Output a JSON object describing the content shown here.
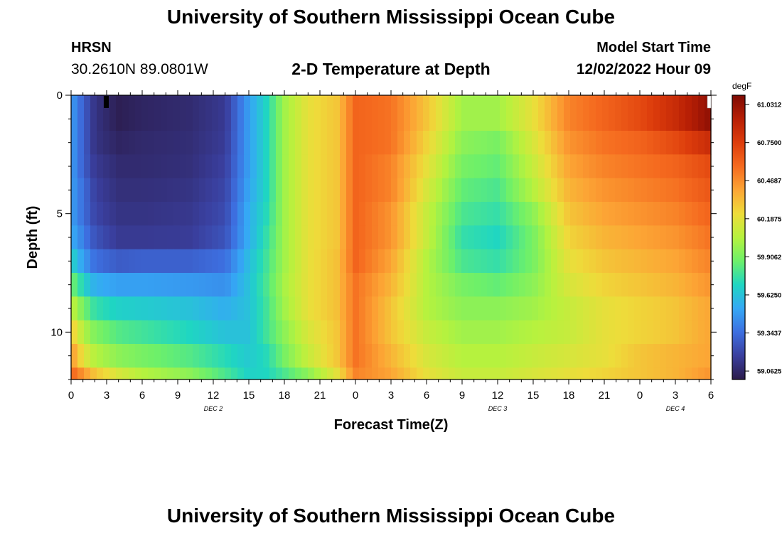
{
  "page": {
    "title": "University of Southern Mississippi Ocean Cube",
    "station_name": "HRSN",
    "station_coords": "30.2610N  89.0801W",
    "plot_title": "2-D Temperature at Depth",
    "model_start_label": "Model Start Time",
    "model_start_value": "12/02/2022 Hour 09",
    "footer_title": "University of Southern Mississippi Ocean Cube"
  },
  "chart_data": {
    "type": "heatmap",
    "title": "2-D Temperature at Depth",
    "xlabel": "Forecast Time(Z)",
    "ylabel": "Depth (ft)",
    "x_range_hours": [
      0,
      54
    ],
    "y_range_ft": [
      0,
      12
    ],
    "x_tick_labels": [
      "0",
      "3",
      "6",
      "9",
      "12",
      "15",
      "18",
      "21",
      "0",
      "3",
      "6",
      "9",
      "12",
      "15",
      "18",
      "21",
      "0",
      "3",
      "6"
    ],
    "y_tick_labels": [
      "0",
      "5",
      "10"
    ],
    "date_labels": [
      {
        "text": "DEC 2",
        "hour": 12
      },
      {
        "text": "DEC 3",
        "hour": 36
      },
      {
        "text": "DEC 4",
        "hour": 51
      }
    ],
    "colorbar": {
      "unit": "degF",
      "tick_labels": [
        "61.0312",
        "60.7500",
        "60.4687",
        "60.1875",
        "59.9062",
        "59.6250",
        "59.3437",
        "59.0625"
      ],
      "min": 59.0,
      "max": 61.1,
      "colors": [
        "#2b1b4a",
        "#3a3f9e",
        "#3d6fe0",
        "#35a8f5",
        "#1fd6c2",
        "#6df06a",
        "#b6f23e",
        "#eedc3a",
        "#fca535",
        "#f56a1f",
        "#dd3d0c",
        "#b71f05",
        "#7e0a04"
      ]
    },
    "depth_rows_ft": [
      0,
      1,
      2,
      3,
      4,
      5,
      6,
      7,
      8,
      9,
      10,
      11,
      12
    ],
    "time_keys_hours": [
      0,
      1,
      2,
      4,
      6,
      10,
      13,
      15,
      16.5,
      18,
      20,
      22.5,
      24,
      27,
      30,
      33,
      36,
      39,
      42,
      45,
      48,
      51,
      54
    ],
    "grid_degF": [
      [
        59.5,
        59.3,
        59.12,
        59.02,
        59.05,
        59.08,
        59.15,
        59.5,
        59.7,
        60.0,
        60.2,
        60.3,
        60.6,
        60.55,
        60.3,
        60.0,
        60.0,
        60.2,
        60.5,
        60.6,
        60.7,
        60.85,
        61.05
      ],
      [
        59.5,
        59.3,
        59.12,
        59.02,
        59.05,
        59.08,
        59.15,
        59.5,
        59.7,
        60.0,
        60.2,
        60.3,
        60.6,
        60.55,
        60.3,
        60.0,
        60.0,
        60.2,
        60.5,
        60.6,
        60.7,
        60.85,
        61.05
      ],
      [
        59.5,
        59.3,
        59.12,
        59.05,
        59.07,
        59.09,
        59.16,
        59.5,
        59.7,
        60.0,
        60.2,
        60.3,
        60.6,
        60.55,
        60.25,
        59.95,
        59.9,
        60.15,
        60.45,
        60.55,
        60.6,
        60.7,
        60.85
      ],
      [
        59.5,
        59.3,
        59.15,
        59.08,
        59.08,
        59.1,
        59.18,
        59.5,
        59.7,
        60.0,
        60.2,
        60.3,
        60.6,
        60.5,
        60.2,
        59.9,
        59.85,
        60.1,
        60.4,
        60.5,
        60.55,
        60.6,
        60.7
      ],
      [
        59.5,
        59.35,
        59.18,
        59.1,
        59.1,
        59.12,
        59.2,
        59.52,
        59.7,
        60.0,
        60.2,
        60.3,
        60.6,
        60.5,
        60.15,
        59.85,
        59.8,
        60.05,
        60.35,
        60.45,
        60.5,
        60.55,
        60.65
      ],
      [
        59.5,
        59.35,
        59.2,
        59.12,
        59.12,
        59.14,
        59.22,
        59.55,
        59.72,
        60.0,
        60.2,
        60.3,
        60.6,
        60.45,
        60.1,
        59.8,
        59.75,
        59.95,
        60.3,
        60.4,
        60.45,
        60.5,
        60.6
      ],
      [
        59.55,
        59.4,
        59.25,
        59.15,
        59.15,
        59.16,
        59.25,
        59.55,
        59.75,
        60.0,
        60.2,
        60.3,
        60.6,
        60.45,
        60.1,
        59.75,
        59.7,
        59.9,
        60.25,
        60.35,
        60.4,
        60.45,
        60.55
      ],
      [
        59.7,
        59.5,
        59.35,
        59.28,
        59.3,
        59.3,
        59.35,
        59.6,
        59.78,
        60.0,
        60.2,
        60.32,
        60.6,
        60.4,
        60.05,
        59.8,
        59.75,
        59.9,
        60.2,
        60.3,
        60.35,
        60.4,
        60.5
      ],
      [
        59.9,
        59.7,
        59.55,
        59.5,
        59.5,
        59.48,
        59.45,
        59.62,
        59.8,
        60.02,
        60.2,
        60.32,
        60.55,
        60.35,
        60.05,
        59.9,
        59.85,
        59.95,
        60.15,
        60.25,
        60.3,
        60.35,
        60.45
      ],
      [
        60.1,
        59.9,
        59.75,
        59.68,
        59.66,
        59.62,
        59.55,
        59.62,
        59.78,
        60.0,
        60.2,
        60.32,
        60.55,
        60.3,
        60.05,
        59.95,
        59.95,
        60.0,
        60.1,
        60.2,
        60.25,
        60.3,
        60.4
      ],
      [
        60.3,
        60.05,
        59.92,
        59.82,
        59.78,
        59.7,
        59.62,
        59.62,
        59.78,
        59.95,
        60.15,
        60.3,
        60.55,
        60.3,
        60.1,
        60.0,
        60.0,
        60.05,
        60.1,
        60.2,
        60.25,
        60.3,
        60.4
      ],
      [
        60.45,
        60.2,
        60.05,
        59.95,
        59.9,
        59.82,
        59.72,
        59.65,
        59.72,
        59.9,
        60.1,
        60.3,
        60.55,
        60.35,
        60.15,
        60.05,
        60.05,
        60.1,
        60.15,
        60.2,
        60.3,
        60.35,
        60.4
      ],
      [
        60.6,
        60.45,
        60.3,
        60.15,
        60.05,
        59.95,
        59.8,
        59.68,
        59.7,
        59.8,
        59.95,
        60.2,
        60.5,
        60.4,
        60.2,
        60.1,
        60.1,
        60.15,
        60.2,
        60.25,
        60.3,
        60.35,
        60.45
      ]
    ]
  }
}
